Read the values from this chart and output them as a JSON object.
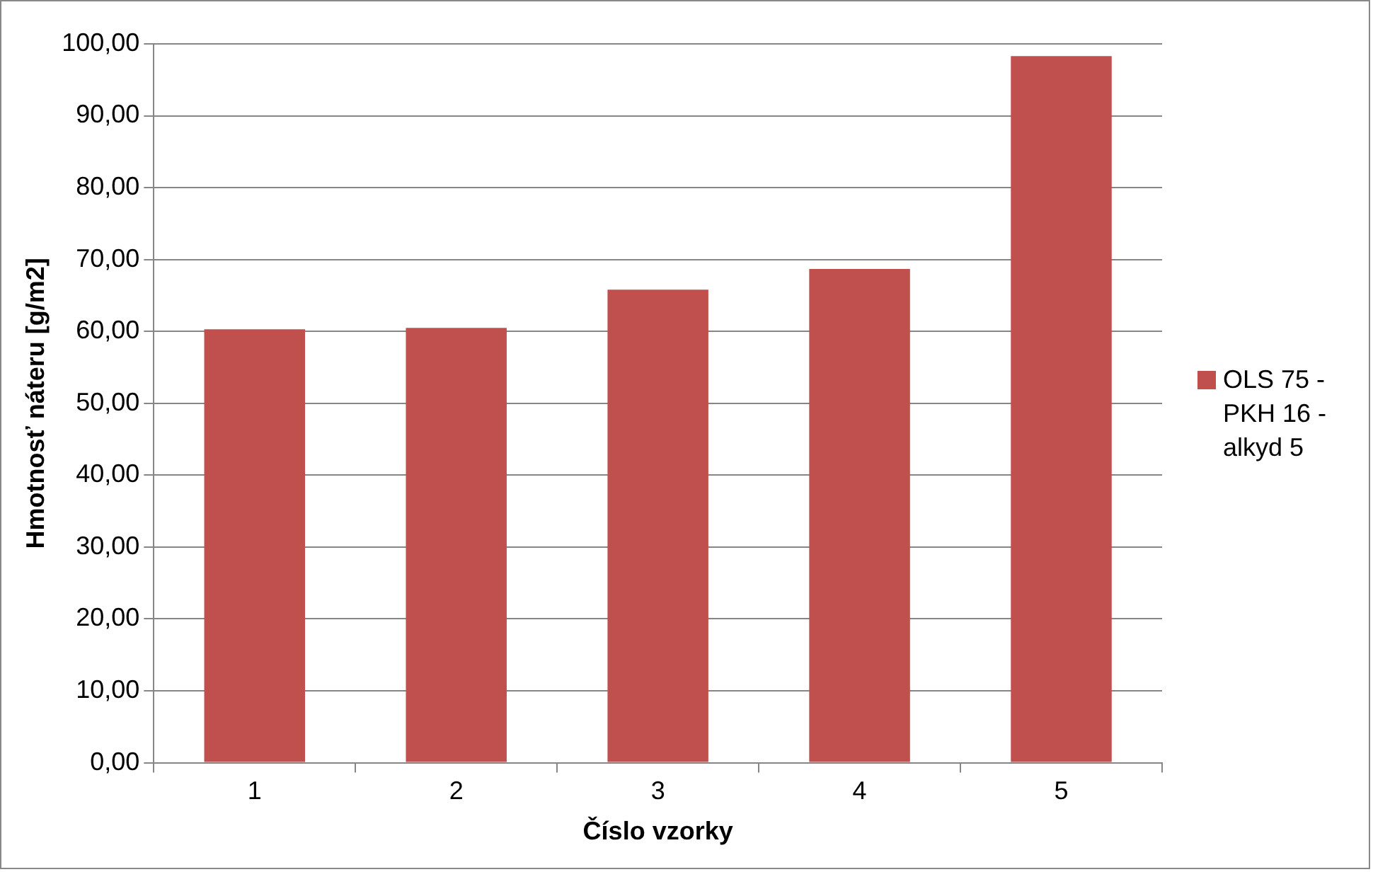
{
  "chart_data": {
    "type": "bar",
    "xlabel": "Číslo vzorky",
    "ylabel": "Hmotnosť náteru [g/m2]",
    "categories": [
      "1",
      "2",
      "3",
      "4",
      "5"
    ],
    "series": [
      {
        "name": "OLS 75 - PKH 16 - alkyd 5",
        "color": "#c0504d",
        "values": [
          60.3,
          60.5,
          65.8,
          68.7,
          98.3
        ]
      }
    ],
    "ylim": [
      0,
      100
    ],
    "yticks": [
      {
        "value": 0,
        "label": "0,00"
      },
      {
        "value": 10,
        "label": "10,00"
      },
      {
        "value": 20,
        "label": "20,00"
      },
      {
        "value": 30,
        "label": "30,00"
      },
      {
        "value": 40,
        "label": "40,00"
      },
      {
        "value": 50,
        "label": "50,00"
      },
      {
        "value": 60,
        "label": "60,00"
      },
      {
        "value": 70,
        "label": "70,00"
      },
      {
        "value": 80,
        "label": "80,00"
      },
      {
        "value": 90,
        "label": "90,00"
      },
      {
        "value": 100,
        "label": "100,00"
      }
    ],
    "grid": "y",
    "legend": "right"
  }
}
